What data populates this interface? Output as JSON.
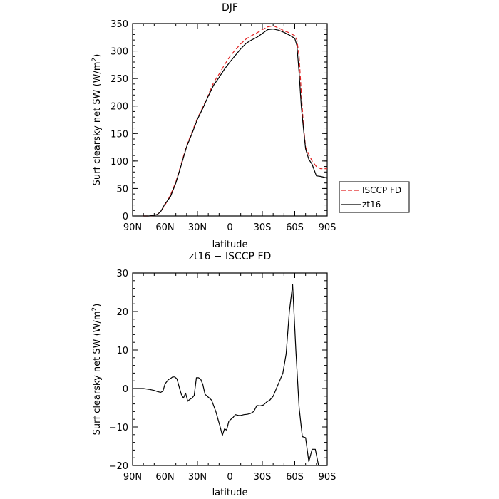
{
  "chart_data": [
    {
      "type": "line",
      "title": "DJF",
      "xlabel": "latitude",
      "ylabel": "Surf clearsky net SW (W/m²)",
      "ylabel_main": "Surf clearsky net SW (W/m",
      "ylabel_sup": "2",
      "ylabel_end": ")",
      "xlim": [
        90,
        -90
      ],
      "ylim": [
        0,
        350
      ],
      "x_ticks": [
        90,
        60,
        30,
        0,
        -30,
        -60,
        -90
      ],
      "x_tick_labels": [
        "90N",
        "60N",
        "30N",
        "0",
        "30S",
        "60S",
        "90S"
      ],
      "y_ticks": [
        0,
        50,
        100,
        150,
        200,
        250,
        300,
        350
      ],
      "y_tick_labels": [
        "0",
        "50",
        "100",
        "150",
        "200",
        "250",
        "300",
        "350"
      ],
      "legend_placement": "right",
      "series": [
        {
          "name": "ISCCP FD",
          "color": "#e02020",
          "dash": "dashed",
          "x": [
            80,
            75,
            70,
            67,
            64,
            60,
            55,
            50,
            45,
            40,
            35,
            30,
            25,
            20,
            15,
            10,
            5,
            0,
            -5,
            -10,
            -15,
            -20,
            -25,
            -30,
            -35,
            -40,
            -45,
            -50,
            -55,
            -60,
            -62,
            -64,
            -66,
            -68,
            -70,
            -73,
            -76,
            -80,
            -84,
            -88,
            -90
          ],
          "values": [
            0,
            0,
            1,
            3,
            8,
            20,
            38,
            62,
            95,
            128,
            153,
            178,
            198,
            220,
            243,
            258,
            275,
            290,
            302,
            313,
            322,
            328,
            333,
            339,
            344,
            346,
            342,
            337,
            333,
            328,
            320,
            290,
            225,
            165,
            125,
            112,
            100,
            90,
            86,
            86,
            86
          ]
        },
        {
          "name": "zt16",
          "color": "#000000",
          "dash": "solid",
          "x": [
            80,
            75,
            70,
            67,
            64,
            60,
            55,
            50,
            45,
            40,
            35,
            30,
            25,
            20,
            15,
            10,
            5,
            0,
            -5,
            -10,
            -15,
            -20,
            -25,
            -30,
            -35,
            -40,
            -45,
            -50,
            -55,
            -60,
            -62,
            -64,
            -66,
            -68,
            -70,
            -73,
            -76,
            -80,
            -84,
            -88,
            -90
          ],
          "values": [
            0,
            0,
            1,
            3,
            8,
            22,
            35,
            60,
            93,
            126,
            150,
            176,
            196,
            218,
            238,
            252,
            267,
            280,
            292,
            304,
            314,
            320,
            325,
            332,
            339,
            340,
            338,
            334,
            329,
            323,
            310,
            260,
            200,
            160,
            122,
            103,
            94,
            73,
            72,
            70,
            69
          ]
        }
      ]
    },
    {
      "type": "line",
      "title": "zt16 − ISCCP FD",
      "xlabel": "latitude",
      "ylabel": "Surf clearsky net SW (W/m²)",
      "ylabel_main": "Surf clearsky net SW (W/m",
      "ylabel_sup": "2",
      "ylabel_end": ")",
      "xlim": [
        90,
        -90
      ],
      "ylim": [
        -20,
        30
      ],
      "x_ticks": [
        90,
        60,
        30,
        0,
        -30,
        -60,
        -90
      ],
      "x_tick_labels": [
        "90N",
        "60N",
        "30N",
        "0",
        "30S",
        "60S",
        "90S"
      ],
      "y_ticks": [
        -20,
        -10,
        0,
        10,
        20,
        30
      ],
      "y_tick_labels": [
        "−20",
        "−10",
        "0",
        "10",
        "20",
        "30"
      ],
      "series": [
        {
          "color": "#000000",
          "dash": "solid",
          "x": [
            90,
            80,
            75,
            70,
            67,
            64,
            62,
            60,
            57,
            55,
            53,
            51,
            49,
            47,
            45,
            43,
            41,
            39,
            37,
            35,
            33,
            31,
            29,
            27,
            25,
            23,
            21,
            19,
            17,
            15,
            13,
            11,
            9,
            7,
            5,
            3,
            1,
            -1,
            -3,
            -5,
            -8,
            -10,
            -13,
            -16,
            -19,
            -22,
            -25,
            -28,
            -31,
            -34,
            -37,
            -40,
            -43,
            -46,
            -49,
            -52,
            -55,
            -58,
            -61,
            -64,
            -67,
            -70,
            -73,
            -76,
            -79,
            -82,
            -85,
            -88,
            -90
          ],
          "values": [
            0,
            0,
            -0.2,
            -0.5,
            -0.8,
            -1.0,
            -0.7,
            1.2,
            2.3,
            2.6,
            3.0,
            3.0,
            2.5,
            0.5,
            -1.5,
            -2.5,
            -1.2,
            -3.3,
            -2.8,
            -2.5,
            -1.8,
            2.8,
            2.8,
            2.4,
            1.0,
            -1.5,
            -2.0,
            -2.5,
            -3.0,
            -4.5,
            -6.0,
            -8.0,
            -10.0,
            -12.2,
            -10.5,
            -10.8,
            -8.5,
            -8.0,
            -7.5,
            -6.8,
            -7.0,
            -7.0,
            -6.8,
            -6.7,
            -6.5,
            -6.0,
            -4.4,
            -4.5,
            -4.3,
            -3.5,
            -3.0,
            -2.0,
            0,
            2.0,
            4.0,
            9.0,
            20.0,
            27.0,
            10.0,
            -5.0,
            -12.5,
            -12.8,
            -19.0,
            -15.8,
            -15.8,
            -20.0,
            -20.5,
            -20.8,
            -21.0
          ]
        }
      ]
    }
  ]
}
